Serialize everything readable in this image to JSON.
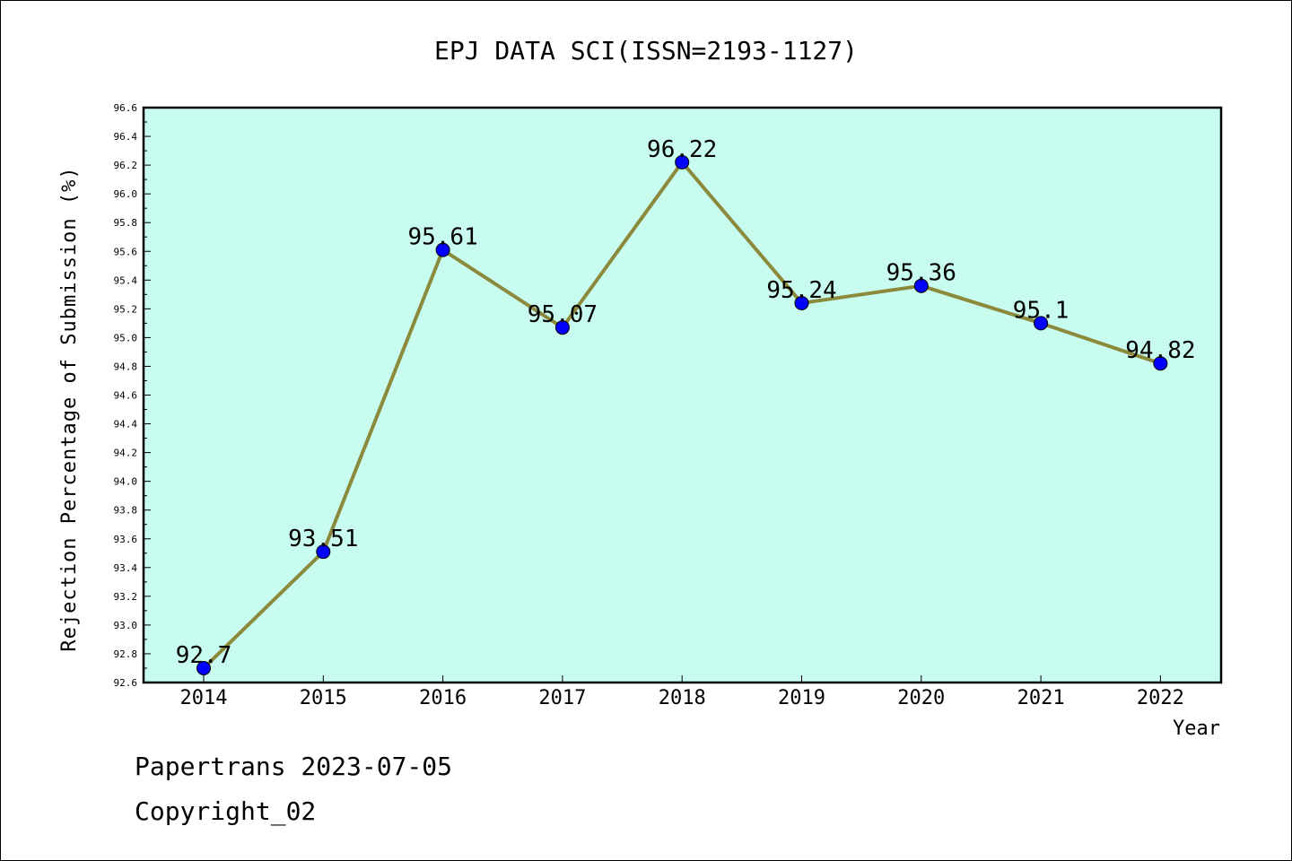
{
  "chart_data": {
    "type": "line",
    "title": "EPJ DATA SCI(ISSN=2193-1127)",
    "xlabel": "Year",
    "ylabel": "Rejection Percentage of Submission (%)",
    "x": [
      "2014",
      "2015",
      "2016",
      "2017",
      "2018",
      "2019",
      "2020",
      "2021",
      "2022"
    ],
    "values": [
      92.7,
      93.51,
      95.61,
      95.07,
      96.22,
      95.24,
      95.36,
      95.1,
      94.82
    ],
    "data_labels": [
      "92.7",
      "93.51",
      "95.61",
      "95.07",
      "96.22",
      "95.24",
      "95.36",
      "95.1",
      "94.82"
    ],
    "ylim": [
      92.6,
      96.6
    ],
    "y_ticks": [
      "92.6",
      "92.8",
      "93.0",
      "93.2",
      "93.4",
      "93.6",
      "93.8",
      "94.0",
      "94.2",
      "94.4",
      "94.6",
      "94.8",
      "95.0",
      "95.2",
      "95.4",
      "95.6",
      "95.8",
      "96.0",
      "96.2",
      "96.4",
      "96.6"
    ],
    "grid": false,
    "colors": {
      "plot_background": "#c8fcee",
      "line": "#8b8a3c",
      "marker": "#0000ff",
      "axis": "#000000"
    }
  },
  "footer": {
    "line1": "Papertrans 2023-07-05",
    "line2": "Copyright_02"
  }
}
